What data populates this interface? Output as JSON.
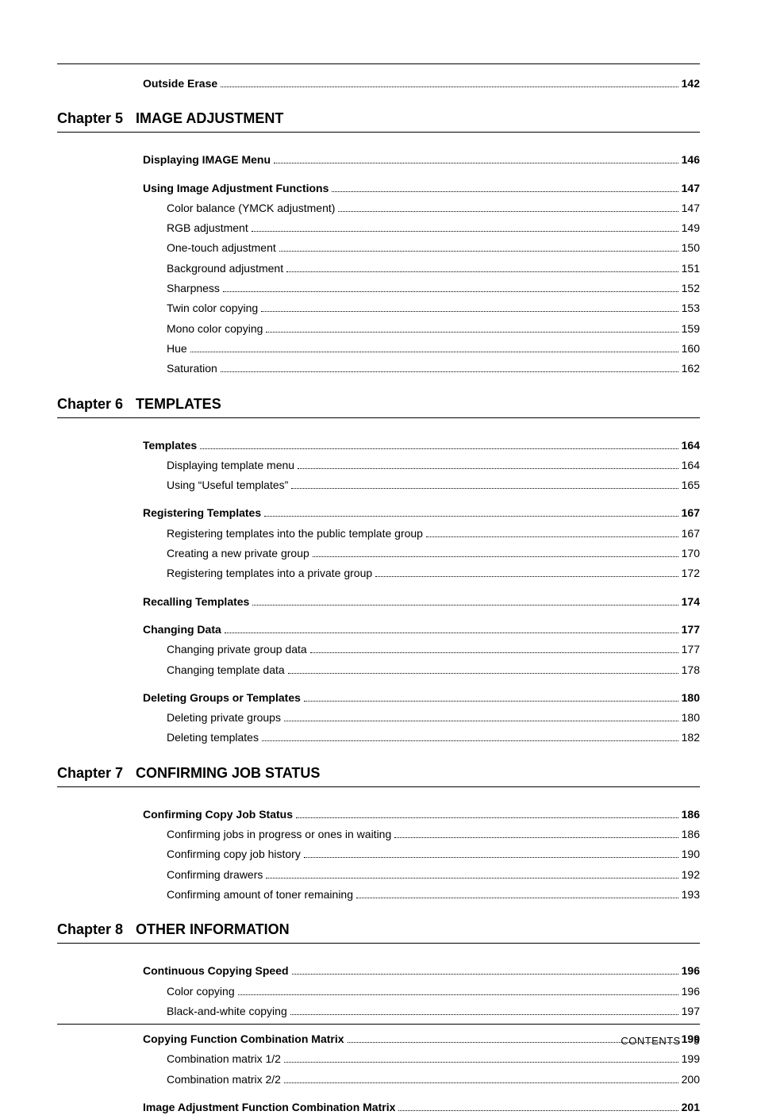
{
  "footer": {
    "label": "CONTENTS",
    "page": "5"
  },
  "top": {
    "items": [
      {
        "text": "Outside Erase",
        "page": "142",
        "bold": true,
        "indent": 1
      }
    ]
  },
  "chapters": [
    {
      "label": "Chapter 5",
      "title": "IMAGE ADJUSTMENT",
      "groups": [
        [
          {
            "text": "Displaying IMAGE Menu",
            "page": "146",
            "bold": true,
            "indent": 1
          }
        ],
        [
          {
            "text": "Using Image Adjustment Functions",
            "page": "147",
            "bold": true,
            "indent": 1
          },
          {
            "text": "Color balance (YMCK adjustment)",
            "page": "147",
            "bold": false,
            "indent": 2
          },
          {
            "text": "RGB adjustment",
            "page": "149",
            "bold": false,
            "indent": 2
          },
          {
            "text": "One-touch adjustment",
            "page": "150",
            "bold": false,
            "indent": 2
          },
          {
            "text": "Background adjustment",
            "page": "151",
            "bold": false,
            "indent": 2
          },
          {
            "text": "Sharpness",
            "page": "152",
            "bold": false,
            "indent": 2
          },
          {
            "text": "Twin color copying",
            "page": "153",
            "bold": false,
            "indent": 2
          },
          {
            "text": "Mono color copying",
            "page": "159",
            "bold": false,
            "indent": 2
          },
          {
            "text": "Hue",
            "page": "160",
            "bold": false,
            "indent": 2
          },
          {
            "text": "Saturation",
            "page": "162",
            "bold": false,
            "indent": 2
          }
        ]
      ]
    },
    {
      "label": "Chapter 6",
      "title": "TEMPLATES",
      "groups": [
        [
          {
            "text": "Templates",
            "page": "164",
            "bold": true,
            "indent": 1
          },
          {
            "text": "Displaying template menu",
            "page": "164",
            "bold": false,
            "indent": 2
          },
          {
            "text": "Using “Useful templates”",
            "page": "165",
            "bold": false,
            "indent": 2
          }
        ],
        [
          {
            "text": "Registering Templates",
            "page": "167",
            "bold": true,
            "indent": 1
          },
          {
            "text": "Registering templates into the public template group",
            "page": "167",
            "bold": false,
            "indent": 2
          },
          {
            "text": "Creating a new private group",
            "page": "170",
            "bold": false,
            "indent": 2
          },
          {
            "text": "Registering templates into a private group",
            "page": "172",
            "bold": false,
            "indent": 2
          }
        ],
        [
          {
            "text": "Recalling Templates",
            "page": "174",
            "bold": true,
            "indent": 1
          }
        ],
        [
          {
            "text": "Changing Data",
            "page": "177",
            "bold": true,
            "indent": 1
          },
          {
            "text": "Changing private group data",
            "page": "177",
            "bold": false,
            "indent": 2
          },
          {
            "text": "Changing template data",
            "page": "178",
            "bold": false,
            "indent": 2
          }
        ],
        [
          {
            "text": "Deleting Groups or Templates",
            "page": "180",
            "bold": true,
            "indent": 1
          },
          {
            "text": "Deleting private groups",
            "page": "180",
            "bold": false,
            "indent": 2
          },
          {
            "text": "Deleting templates",
            "page": "182",
            "bold": false,
            "indent": 2
          }
        ]
      ]
    },
    {
      "label": "Chapter 7",
      "title": "CONFIRMING JOB STATUS",
      "groups": [
        [
          {
            "text": "Confirming Copy Job Status",
            "page": "186",
            "bold": true,
            "indent": 1
          },
          {
            "text": "Confirming jobs in progress or ones in waiting",
            "page": "186",
            "bold": false,
            "indent": 2
          },
          {
            "text": "Confirming copy job history",
            "page": "190",
            "bold": false,
            "indent": 2
          },
          {
            "text": "Confirming drawers",
            "page": "192",
            "bold": false,
            "indent": 2
          },
          {
            "text": "Confirming amount of toner remaining",
            "page": "193",
            "bold": false,
            "indent": 2
          }
        ]
      ]
    },
    {
      "label": "Chapter 8",
      "title": "OTHER INFORMATION",
      "groups": [
        [
          {
            "text": "Continuous Copying Speed",
            "page": "196",
            "bold": true,
            "indent": 1
          },
          {
            "text": "Color copying",
            "page": "196",
            "bold": false,
            "indent": 2
          },
          {
            "text": "Black-and-white copying",
            "page": "197",
            "bold": false,
            "indent": 2
          }
        ],
        [
          {
            "text": "Copying Function Combination Matrix",
            "page": "199",
            "bold": true,
            "indent": 1
          },
          {
            "text": "Combination matrix 1/2",
            "page": "199",
            "bold": false,
            "indent": 2
          },
          {
            "text": "Combination matrix 2/2",
            "page": "200",
            "bold": false,
            "indent": 2
          }
        ],
        [
          {
            "text": "Image Adjustment Function Combination Matrix",
            "page": "201",
            "bold": true,
            "indent": 1
          }
        ]
      ]
    }
  ]
}
